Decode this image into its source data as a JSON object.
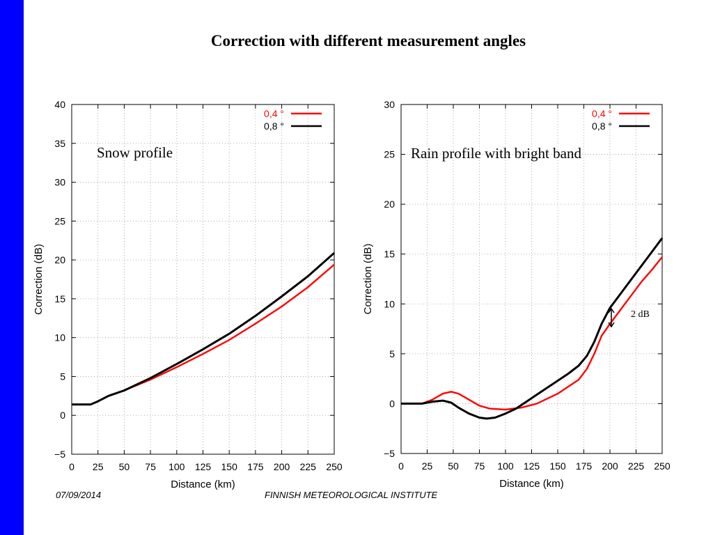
{
  "slide": {
    "title": "Correction with different measurement angles",
    "footer_date": "07/09/2014",
    "footer_org": "FINNISH METEOROLOGICAL INSTITUTE",
    "accent_color": "#0000ff"
  },
  "chart_data": [
    {
      "type": "line",
      "annotation": "Snow profile",
      "xlabel": "Distance (km)",
      "ylabel": "Correction (dB)",
      "xlim": [
        0,
        250
      ],
      "ylim": [
        -5,
        40
      ],
      "xticks": [
        0,
        25,
        50,
        75,
        100,
        125,
        150,
        175,
        200,
        225,
        250
      ],
      "yticks": [
        -5,
        0,
        5,
        10,
        15,
        20,
        25,
        30,
        35,
        40
      ],
      "grid": true,
      "legend_position": "top-right",
      "series": [
        {
          "name": "0,4 °",
          "color": "#ff0000",
          "x": [
            0,
            10,
            18,
            25,
            35,
            50,
            75,
            100,
            125,
            150,
            175,
            200,
            225,
            250
          ],
          "y": [
            1.4,
            1.4,
            1.4,
            1.8,
            2.5,
            3.2,
            4.6,
            6.2,
            7.9,
            9.7,
            11.8,
            14.0,
            16.5,
            19.4
          ]
        },
        {
          "name": "0,8 °",
          "color": "#000000",
          "x": [
            0,
            10,
            18,
            25,
            35,
            50,
            75,
            100,
            125,
            150,
            175,
            200,
            225,
            250
          ],
          "y": [
            1.4,
            1.4,
            1.4,
            1.8,
            2.5,
            3.2,
            4.8,
            6.6,
            8.5,
            10.5,
            12.8,
            15.3,
            17.9,
            20.9
          ]
        }
      ]
    },
    {
      "type": "line",
      "annotation": "Rain profile with bright band",
      "xlabel": "Distance (km)",
      "ylabel": "Correction (dB)",
      "xlim": [
        0,
        250
      ],
      "ylim": [
        -5,
        30
      ],
      "xticks": [
        0,
        25,
        50,
        75,
        100,
        125,
        150,
        175,
        200,
        225,
        250
      ],
      "yticks": [
        -5,
        0,
        5,
        10,
        15,
        20,
        25,
        30
      ],
      "grid": true,
      "legend_position": "top-right",
      "arrow_label": "2 dB",
      "series": [
        {
          "name": "0,4 °",
          "color": "#ff0000",
          "x": [
            0,
            15,
            20,
            30,
            40,
            48,
            55,
            65,
            75,
            85,
            100,
            115,
            130,
            150,
            170,
            178,
            185,
            192,
            200,
            210,
            220,
            230,
            240,
            250
          ],
          "y": [
            0,
            0,
            0,
            0.4,
            1.0,
            1.2,
            1.0,
            0.4,
            -0.2,
            -0.5,
            -0.6,
            -0.4,
            0,
            1.0,
            2.4,
            3.5,
            5.0,
            6.8,
            8.0,
            9.4,
            10.8,
            12.2,
            13.4,
            14.7
          ]
        },
        {
          "name": "0,8 °",
          "color": "#000000",
          "x": [
            0,
            15,
            20,
            30,
            40,
            48,
            55,
            65,
            75,
            82,
            90,
            100,
            110,
            120,
            130,
            140,
            150,
            160,
            170,
            178,
            185,
            192,
            200,
            210,
            220,
            230,
            240,
            250
          ],
          "y": [
            0,
            0,
            0,
            0.2,
            0.3,
            0.1,
            -0.4,
            -1.0,
            -1.4,
            -1.5,
            -1.4,
            -1.0,
            -0.5,
            0.2,
            0.9,
            1.6,
            2.3,
            3.0,
            3.8,
            4.8,
            6.2,
            8.0,
            9.6,
            11.0,
            12.4,
            13.8,
            15.2,
            16.6
          ]
        }
      ]
    }
  ]
}
